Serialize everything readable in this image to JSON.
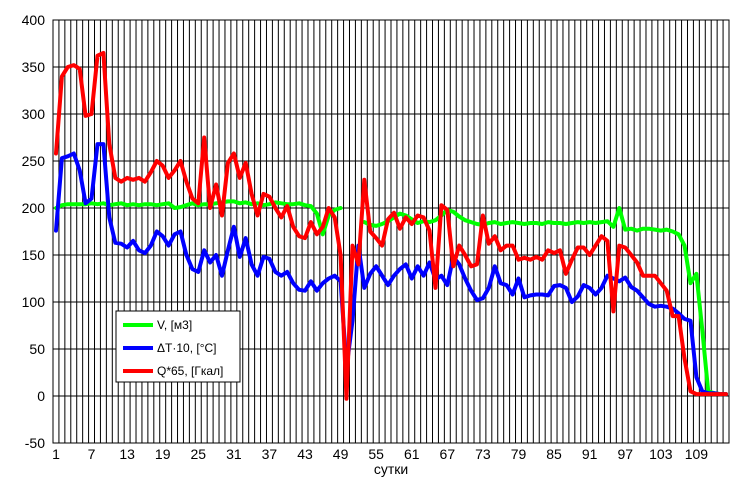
{
  "chart_data": {
    "type": "line",
    "xlabel": "сутки",
    "ylabel": "",
    "ylim": [
      -50,
      400
    ],
    "y_ticks": [
      -50,
      0,
      50,
      100,
      150,
      200,
      250,
      300,
      350,
      400
    ],
    "x_range": [
      1,
      114
    ],
    "x_tick_labels": [
      1,
      7,
      13,
      19,
      25,
      31,
      37,
      43,
      49,
      55,
      61,
      67,
      73,
      79,
      85,
      91,
      97,
      103,
      109
    ],
    "grid": true,
    "legend_position": "bottom-left",
    "series": [
      {
        "name": "V, [м3]",
        "color": "#00ff00",
        "x": [
          1,
          2,
          3,
          4,
          5,
          6,
          7,
          8,
          9,
          10,
          11,
          12,
          13,
          14,
          15,
          16,
          17,
          18,
          19,
          20,
          21,
          22,
          23,
          24,
          25,
          26,
          27,
          28,
          29,
          30,
          31,
          32,
          33,
          34,
          35,
          36,
          37,
          38,
          39,
          40,
          41,
          42,
          43,
          44,
          45,
          46,
          47,
          48,
          49,
          50,
          51,
          52,
          53,
          54,
          55,
          56,
          57,
          58,
          59,
          60,
          61,
          62,
          63,
          64,
          65,
          66,
          67,
          68,
          69,
          70,
          71,
          72,
          73,
          74,
          75,
          76,
          77,
          78,
          79,
          80,
          81,
          82,
          83,
          84,
          85,
          86,
          87,
          88,
          89,
          90,
          91,
          92,
          93,
          94,
          95,
          96,
          97,
          98,
          99,
          100,
          101,
          102,
          103,
          104,
          105,
          106,
          107,
          108,
          109,
          110,
          111,
          112,
          113,
          114
        ],
        "values": [
          200,
          203,
          204,
          204,
          204,
          204,
          205,
          204,
          205,
          203,
          204,
          205,
          203,
          204,
          203,
          204,
          204,
          203,
          204,
          205,
          200,
          201,
          203,
          205,
          203,
          204,
          204,
          205,
          206,
          207,
          207,
          205,
          206,
          204,
          205,
          203,
          204,
          206,
          205,
          204,
          204,
          205,
          203,
          202,
          194,
          172,
          192,
          198,
          200,
          null,
          null,
          null,
          185,
          182,
          181,
          183,
          186,
          190,
          194,
          192,
          188,
          184,
          186,
          185,
          187,
          192,
          198,
          196,
          191,
          187,
          185,
          183,
          182,
          184,
          185,
          183,
          184,
          185,
          184,
          183,
          184,
          184,
          183,
          185,
          184,
          184,
          183,
          184,
          185,
          184,
          185,
          184,
          185,
          186,
          180,
          200,
          177,
          178,
          176,
          178,
          178,
          177,
          176,
          177,
          175,
          172,
          160,
          120,
          130,
          70,
          5,
          3,
          2,
          2
        ]
      },
      {
        "name": "ΔT·10, [°C]",
        "color": "#0000ff",
        "x": [
          1,
          2,
          3,
          4,
          5,
          6,
          7,
          8,
          9,
          10,
          11,
          12,
          13,
          14,
          15,
          16,
          17,
          18,
          19,
          20,
          21,
          22,
          23,
          24,
          25,
          26,
          27,
          28,
          29,
          30,
          31,
          32,
          33,
          34,
          35,
          36,
          37,
          38,
          39,
          40,
          41,
          42,
          43,
          44,
          45,
          46,
          47,
          48,
          49,
          50,
          51,
          52,
          53,
          54,
          55,
          56,
          57,
          58,
          59,
          60,
          61,
          62,
          63,
          64,
          65,
          66,
          67,
          68,
          69,
          70,
          71,
          72,
          73,
          74,
          75,
          76,
          77,
          78,
          79,
          80,
          81,
          82,
          83,
          84,
          85,
          86,
          87,
          88,
          89,
          90,
          91,
          92,
          93,
          94,
          95,
          96,
          97,
          98,
          99,
          100,
          101,
          102,
          103,
          104,
          105,
          106,
          107,
          108,
          109,
          110,
          111,
          112,
          113,
          114
        ],
        "values": [
          176,
          253,
          255,
          258,
          240,
          205,
          210,
          268,
          268,
          190,
          163,
          162,
          158,
          165,
          155,
          152,
          160,
          175,
          170,
          160,
          172,
          175,
          150,
          135,
          132,
          155,
          142,
          150,
          128,
          155,
          180,
          148,
          168,
          140,
          128,
          148,
          146,
          132,
          128,
          132,
          120,
          113,
          112,
          122,
          112,
          120,
          125,
          128,
          122,
          30,
          80,
          160,
          115,
          130,
          138,
          128,
          118,
          128,
          135,
          140,
          125,
          138,
          128,
          142,
          124,
          128,
          118,
          148,
          140,
          125,
          112,
          102,
          104,
          115,
          138,
          120,
          118,
          108,
          125,
          105,
          107,
          108,
          108,
          107,
          117,
          118,
          115,
          100,
          106,
          118,
          115,
          108,
          115,
          128,
          125,
          122,
          126,
          116,
          112,
          105,
          98,
          95,
          96,
          95,
          93,
          88,
          82,
          80,
          20,
          5,
          3,
          3,
          2,
          2
        ]
      },
      {
        "name": "Q*65, [Гкал]",
        "color": "#ff0000",
        "x": [
          1,
          2,
          3,
          4,
          5,
          6,
          7,
          8,
          9,
          10,
          11,
          12,
          13,
          14,
          15,
          16,
          17,
          18,
          19,
          20,
          21,
          22,
          23,
          24,
          25,
          26,
          27,
          28,
          29,
          30,
          31,
          32,
          33,
          34,
          35,
          36,
          37,
          38,
          39,
          40,
          41,
          42,
          43,
          44,
          45,
          46,
          47,
          48,
          49,
          50,
          51,
          52,
          53,
          54,
          55,
          56,
          57,
          58,
          59,
          60,
          61,
          62,
          63,
          64,
          65,
          66,
          67,
          68,
          69,
          70,
          71,
          72,
          73,
          74,
          75,
          76,
          77,
          78,
          79,
          80,
          81,
          82,
          83,
          84,
          85,
          86,
          87,
          88,
          89,
          90,
          91,
          92,
          93,
          94,
          95,
          96,
          97,
          98,
          99,
          100,
          101,
          102,
          103,
          104,
          105,
          106,
          107,
          108,
          109,
          110,
          111,
          112,
          113,
          114
        ],
        "values": [
          258,
          340,
          350,
          352,
          348,
          298,
          300,
          362,
          365,
          268,
          232,
          228,
          232,
          230,
          232,
          228,
          238,
          250,
          245,
          232,
          240,
          250,
          228,
          210,
          205,
          275,
          200,
          225,
          192,
          248,
          258,
          232,
          248,
          215,
          192,
          215,
          212,
          200,
          190,
          202,
          180,
          170,
          168,
          185,
          172,
          180,
          200,
          190,
          150,
          -3,
          160,
          140,
          230,
          175,
          168,
          160,
          188,
          195,
          178,
          190,
          183,
          192,
          190,
          176,
          115,
          203,
          198,
          138,
          160,
          150,
          138,
          140,
          192,
          162,
          170,
          155,
          160,
          160,
          145,
          147,
          145,
          148,
          145,
          155,
          152,
          155,
          130,
          145,
          158,
          158,
          150,
          160,
          170,
          165,
          90,
          160,
          158,
          150,
          142,
          128,
          128,
          128,
          120,
          112,
          85,
          85,
          40,
          5,
          2,
          2,
          2,
          2,
          2,
          2
        ]
      }
    ]
  }
}
